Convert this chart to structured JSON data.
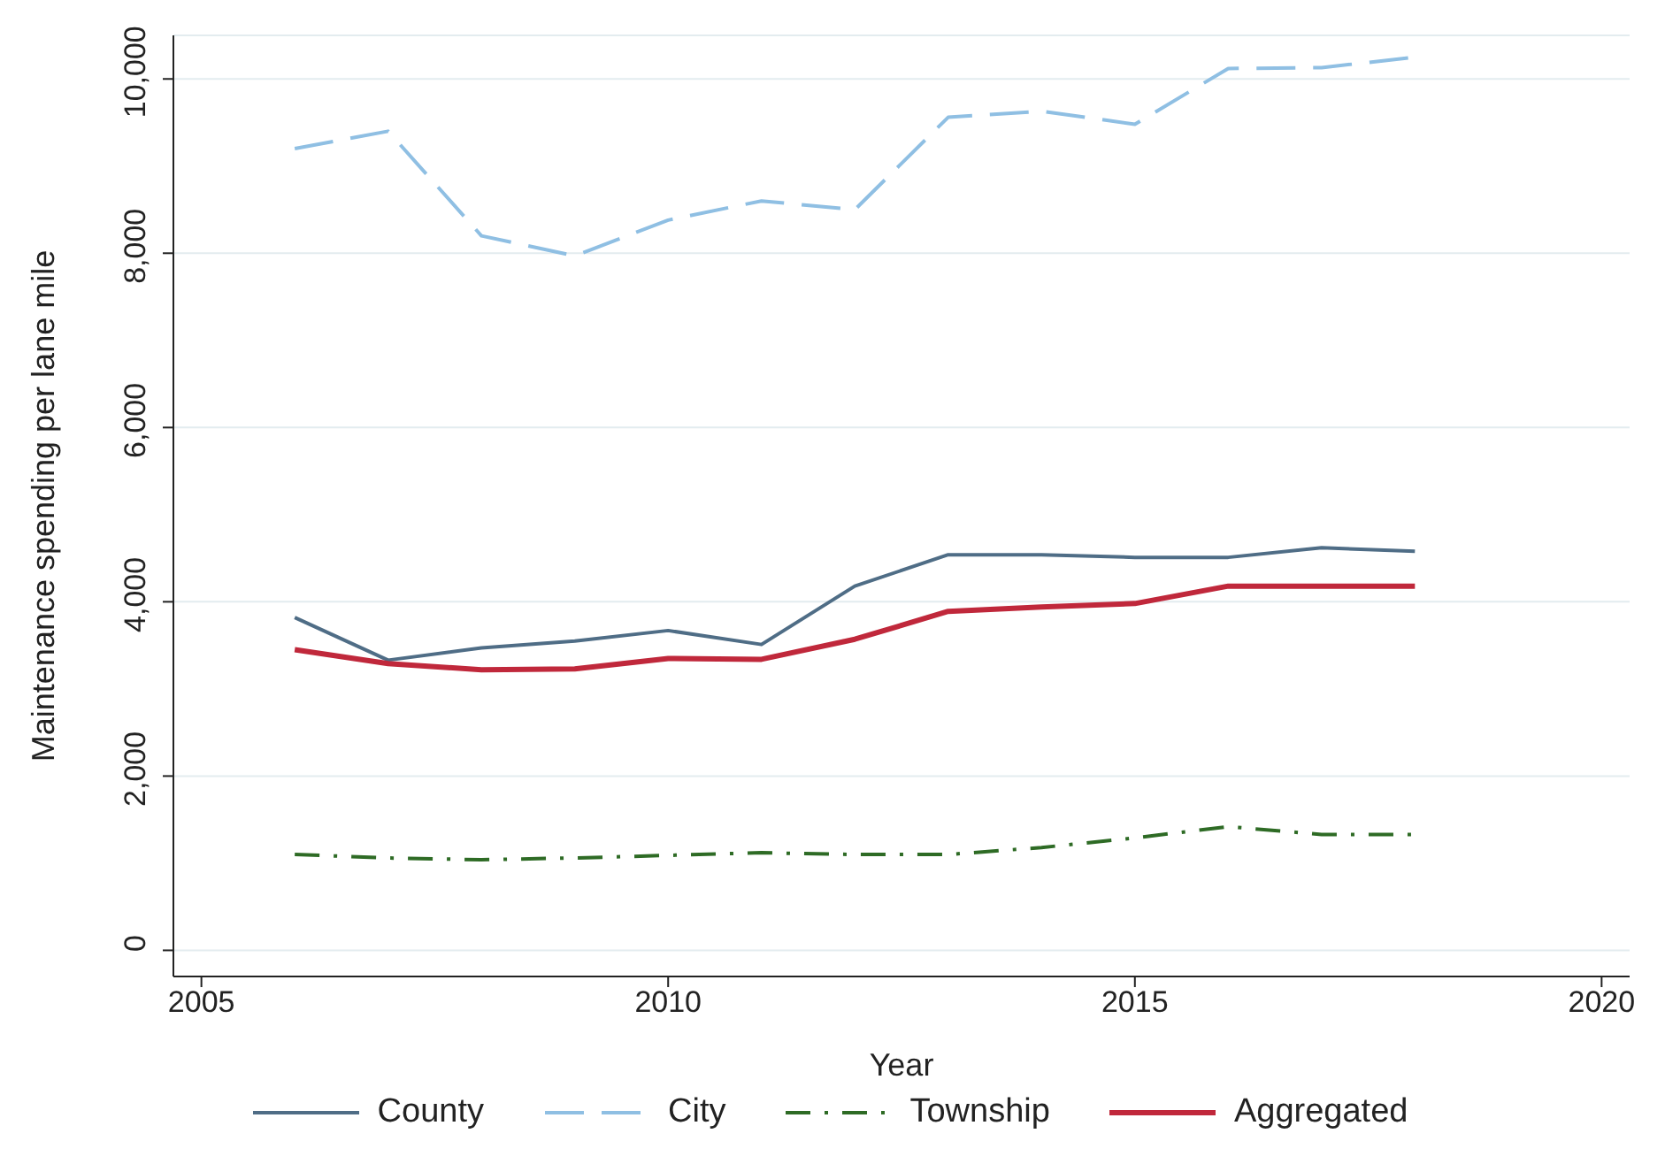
{
  "chart_data": {
    "type": "line",
    "xlabel": "Year",
    "ylabel": "Maintenance spending per lane mile",
    "x": [
      2006,
      2007,
      2008,
      2009,
      2010,
      2011,
      2012,
      2013,
      2014,
      2015,
      2016,
      2017,
      2018
    ],
    "series": [
      {
        "name": "County",
        "color": "#4f6d86",
        "line_style": "solid",
        "values": [
          3820,
          3330,
          3470,
          3550,
          3670,
          3510,
          4180,
          4540,
          4540,
          4510,
          4510,
          4620,
          4580
        ]
      },
      {
        "name": "City",
        "color": "#8fbfe3",
        "line_style": "dashed",
        "values": [
          9200,
          9400,
          8200,
          7970,
          8380,
          8600,
          8500,
          9560,
          9630,
          9480,
          10120,
          10130,
          10250
        ]
      },
      {
        "name": "Township",
        "color": "#2e6b25",
        "line_style": "dashdot",
        "values": [
          1100,
          1060,
          1040,
          1060,
          1090,
          1120,
          1100,
          1100,
          1180,
          1290,
          1420,
          1330,
          1330
        ]
      },
      {
        "name": "Aggregated",
        "color": "#c0283b",
        "line_style": "solid",
        "values": [
          3450,
          3290,
          3220,
          3230,
          3350,
          3340,
          3570,
          3890,
          3940,
          3980,
          4180,
          4180,
          4180
        ]
      }
    ],
    "xlim": [
      2004.7,
      2020.3
    ],
    "xticks": [
      2005,
      2010,
      2015,
      2020
    ],
    "ylim": [
      -300,
      10500
    ],
    "yticks": [
      0,
      {
        "value": 2000,
        "label": "2,000"
      },
      {
        "value": 4000,
        "label": "4,000"
      },
      {
        "value": 6000,
        "label": "6,000"
      },
      {
        "value": 8000,
        "label": "8,000"
      },
      {
        "value": 10000,
        "label": "10,000"
      }
    ],
    "grid": "y",
    "legend": "bottom",
    "marker": "none"
  }
}
